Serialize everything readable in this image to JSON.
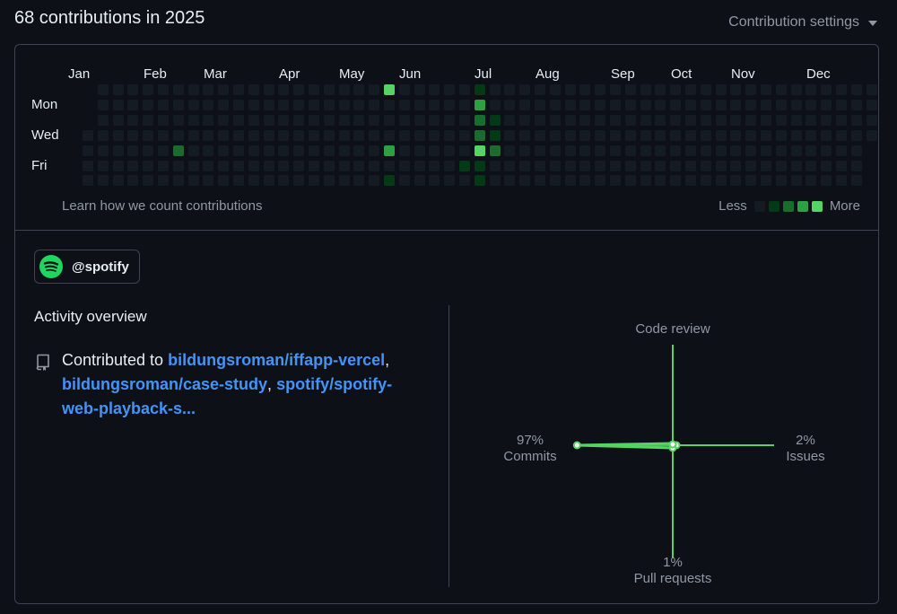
{
  "header": {
    "title": "68 contributions in 2025",
    "settings_label": "Contribution settings"
  },
  "calendar": {
    "months": [
      "Jan",
      "Feb",
      "Mar",
      "Apr",
      "May",
      "Jun",
      "Jul",
      "Aug",
      "Sep",
      "Oct",
      "Nov",
      "Dec"
    ],
    "weekdays": [
      "Mon",
      "Wed",
      "Fri"
    ],
    "learn_link": "Learn how we count contributions",
    "legend": {
      "less": "Less",
      "more": "More"
    },
    "colors": [
      "#151b23",
      "#033a16",
      "#196c2e",
      "#2ea043",
      "#56d364"
    ],
    "active_days": [
      {
        "week": 6,
        "day": 4,
        "level": 2
      },
      {
        "week": 20,
        "day": 0,
        "level": 4
      },
      {
        "week": 20,
        "day": 4,
        "level": 3
      },
      {
        "week": 20,
        "day": 6,
        "level": 1
      },
      {
        "week": 25,
        "day": 5,
        "level": 1
      },
      {
        "week": 26,
        "day": 0,
        "level": 1
      },
      {
        "week": 26,
        "day": 1,
        "level": 3
      },
      {
        "week": 26,
        "day": 2,
        "level": 2
      },
      {
        "week": 26,
        "day": 3,
        "level": 2
      },
      {
        "week": 26,
        "day": 4,
        "level": 4
      },
      {
        "week": 26,
        "day": 5,
        "level": 1
      },
      {
        "week": 26,
        "day": 6,
        "level": 1
      },
      {
        "week": 27,
        "day": 2,
        "level": 1
      },
      {
        "week": 27,
        "day": 3,
        "level": 1
      },
      {
        "week": 27,
        "day": 4,
        "level": 2
      }
    ]
  },
  "org": {
    "handle": "@spotify",
    "color": "#1ed760"
  },
  "activity": {
    "title": "Activity overview",
    "contributed_prefix": "Contributed to",
    "repos": [
      "bildungsroman/iffapp-vercel",
      "bildungsroman/case-study",
      "spotify/spotify-web-playback-s..."
    ],
    "separator": ","
  },
  "overview": {
    "code_review": {
      "label": "Code review",
      "percent": null
    },
    "commits": {
      "label": "Commits",
      "percent": "97%",
      "value": 97
    },
    "issues": {
      "label": "Issues",
      "percent": "2%",
      "value": 2
    },
    "pull_requests": {
      "label": "Pull requests",
      "percent": "1%",
      "value": 1
    },
    "accent_color": "#56d364"
  }
}
